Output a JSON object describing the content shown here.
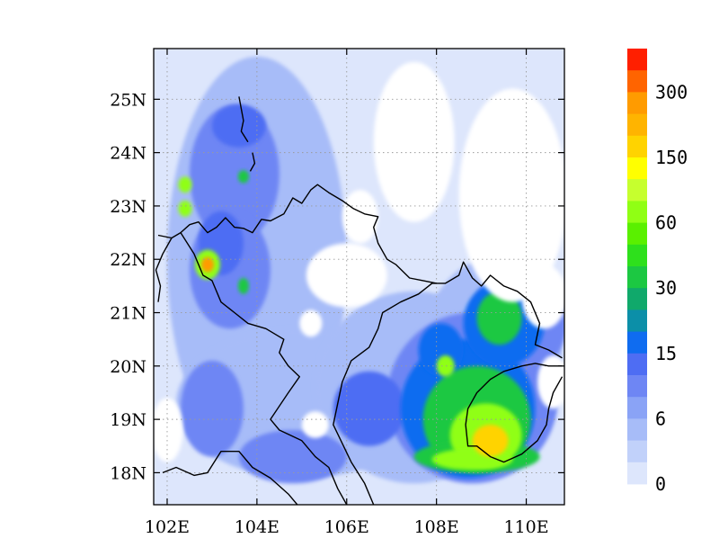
{
  "map": {
    "region": {
      "lon_range": [
        101.7,
        110.85
      ],
      "lat_range": [
        17.4,
        25.95
      ]
    },
    "lon_ticks": [
      {
        "value": 102,
        "label": "102E"
      },
      {
        "value": 104,
        "label": "104E"
      },
      {
        "value": 106,
        "label": "106E"
      },
      {
        "value": 108,
        "label": "108E"
      },
      {
        "value": 110,
        "label": "110E"
      }
    ],
    "lat_ticks": [
      {
        "value": 18,
        "label": "18N"
      },
      {
        "value": 19,
        "label": "19N"
      },
      {
        "value": 20,
        "label": "20N"
      },
      {
        "value": 21,
        "label": "21N"
      },
      {
        "value": 22,
        "label": "22N"
      },
      {
        "value": 23,
        "label": "23N"
      },
      {
        "value": 24,
        "label": "24N"
      },
      {
        "value": 25,
        "label": "25N"
      }
    ],
    "grid": "dotted",
    "field_blobs": [
      {
        "lon": 104.0,
        "lat": 22.0,
        "rx": 2.0,
        "ry": 3.8,
        "level": 1
      },
      {
        "lon": 105.0,
        "lat": 19.3,
        "rx": 2.8,
        "ry": 1.4,
        "level": 1
      },
      {
        "lon": 107.5,
        "lat": 19.6,
        "rx": 2.2,
        "ry": 1.8,
        "level": 1
      },
      {
        "lon": 109.2,
        "lat": 20.0,
        "rx": 1.6,
        "ry": 2.0,
        "level": 1
      },
      {
        "lon": 103.5,
        "lat": 23.6,
        "rx": 1.0,
        "ry": 1.3,
        "level": 2
      },
      {
        "lon": 103.4,
        "lat": 21.8,
        "rx": 0.9,
        "ry": 1.1,
        "level": 2
      },
      {
        "lon": 103.0,
        "lat": 19.2,
        "rx": 0.7,
        "ry": 0.9,
        "level": 2
      },
      {
        "lon": 104.8,
        "lat": 18.3,
        "rx": 1.2,
        "ry": 0.5,
        "level": 2
      },
      {
        "lon": 108.8,
        "lat": 19.4,
        "rx": 1.9,
        "ry": 1.6,
        "level": 2
      },
      {
        "lon": 109.8,
        "lat": 20.8,
        "rx": 1.1,
        "ry": 1.0,
        "level": 2
      },
      {
        "lon": 103.6,
        "lat": 24.5,
        "rx": 0.6,
        "ry": 0.4,
        "level": 3
      },
      {
        "lon": 103.2,
        "lat": 22.3,
        "rx": 0.5,
        "ry": 0.6,
        "level": 3
      },
      {
        "lon": 106.5,
        "lat": 19.2,
        "rx": 0.8,
        "ry": 0.7,
        "level": 3
      },
      {
        "lon": 108.7,
        "lat": 19.2,
        "rx": 1.5,
        "ry": 1.3,
        "level": 4
      },
      {
        "lon": 109.5,
        "lat": 20.8,
        "rx": 0.9,
        "ry": 0.8,
        "level": 4
      },
      {
        "lon": 108.1,
        "lat": 20.3,
        "rx": 0.5,
        "ry": 0.5,
        "level": 4
      },
      {
        "lon": 108.9,
        "lat": 19.0,
        "rx": 1.2,
        "ry": 1.0,
        "level": 5
      },
      {
        "lon": 108.9,
        "lat": 18.3,
        "rx": 1.4,
        "ry": 0.3,
        "level": 5
      },
      {
        "lon": 109.4,
        "lat": 20.9,
        "rx": 0.5,
        "ry": 0.5,
        "level": 5
      },
      {
        "lon": 109.1,
        "lat": 18.7,
        "rx": 0.8,
        "ry": 0.6,
        "level": 6
      },
      {
        "lon": 108.8,
        "lat": 18.25,
        "rx": 0.9,
        "ry": 0.2,
        "level": 6
      },
      {
        "lon": 108.2,
        "lat": 20.0,
        "rx": 0.2,
        "ry": 0.2,
        "level": 6
      },
      {
        "lon": 109.2,
        "lat": 18.6,
        "rx": 0.4,
        "ry": 0.3,
        "level": 7
      },
      {
        "lon": 102.9,
        "lat": 21.9,
        "rx": 0.28,
        "ry": 0.28,
        "level": 6
      },
      {
        "lon": 102.9,
        "lat": 21.9,
        "rx": 0.14,
        "ry": 0.14,
        "level": 8
      },
      {
        "lon": 102.4,
        "lat": 23.4,
        "rx": 0.15,
        "ry": 0.15,
        "level": 6
      },
      {
        "lon": 102.4,
        "lat": 22.95,
        "rx": 0.15,
        "ry": 0.15,
        "level": 6
      },
      {
        "lon": 103.7,
        "lat": 23.55,
        "rx": 0.12,
        "ry": 0.12,
        "level": 5
      },
      {
        "lon": 103.7,
        "lat": 21.5,
        "rx": 0.12,
        "ry": 0.15,
        "level": 5
      }
    ],
    "blank_patches": [
      {
        "lon": 107.5,
        "lat": 24.2,
        "rx": 0.9,
        "ry": 1.5
      },
      {
        "lon": 109.7,
        "lat": 23.2,
        "rx": 1.2,
        "ry": 2.0
      },
      {
        "lon": 106.3,
        "lat": 22.8,
        "rx": 0.4,
        "ry": 0.5
      },
      {
        "lon": 106.0,
        "lat": 21.7,
        "rx": 0.9,
        "ry": 0.6
      },
      {
        "lon": 110.4,
        "lat": 21.3,
        "rx": 0.5,
        "ry": 0.6
      },
      {
        "lon": 110.6,
        "lat": 19.7,
        "rx": 0.35,
        "ry": 0.5
      },
      {
        "lon": 102.0,
        "lat": 18.8,
        "rx": 0.35,
        "ry": 0.6
      },
      {
        "lon": 105.3,
        "lat": 18.9,
        "rx": 0.3,
        "ry": 0.25
      },
      {
        "lon": 105.2,
        "lat": 20.8,
        "rx": 0.25,
        "ry": 0.25
      }
    ],
    "borders": [
      [
        [
          101.8,
          22.45
        ],
        [
          102.1,
          22.4
        ],
        [
          102.3,
          22.5
        ],
        [
          102.5,
          22.65
        ],
        [
          102.7,
          22.7
        ],
        [
          102.9,
          22.5
        ],
        [
          103.1,
          22.6
        ],
        [
          103.3,
          22.78
        ],
        [
          103.5,
          22.6
        ],
        [
          103.7,
          22.58
        ],
        [
          103.9,
          22.5
        ],
        [
          104.1,
          22.75
        ],
        [
          104.3,
          22.72
        ],
        [
          104.6,
          22.85
        ],
        [
          104.8,
          23.15
        ],
        [
          105.0,
          23.05
        ],
        [
          105.2,
          23.3
        ],
        [
          105.35,
          23.4
        ],
        [
          105.6,
          23.25
        ],
        [
          105.9,
          23.1
        ],
        [
          106.15,
          22.95
        ],
        [
          106.4,
          22.85
        ],
        [
          106.7,
          22.8
        ],
        [
          106.6,
          22.6
        ],
        [
          106.7,
          22.3
        ],
        [
          106.9,
          22.0
        ],
        [
          107.1,
          21.9
        ],
        [
          107.4,
          21.65
        ],
        [
          107.7,
          21.6
        ],
        [
          108.0,
          21.55
        ]
      ],
      [
        [
          101.8,
          21.2
        ],
        [
          101.85,
          21.5
        ],
        [
          101.75,
          21.8
        ],
        [
          101.9,
          22.1
        ],
        [
          102.1,
          22.4
        ]
      ],
      [
        [
          102.3,
          22.5
        ],
        [
          102.6,
          22.1
        ],
        [
          102.8,
          21.7
        ],
        [
          103.0,
          21.6
        ],
        [
          103.2,
          21.2
        ],
        [
          103.5,
          21.0
        ],
        [
          103.8,
          20.8
        ],
        [
          104.2,
          20.7
        ],
        [
          104.6,
          20.5
        ],
        [
          104.5,
          20.25
        ],
        [
          104.7,
          20.0
        ],
        [
          104.95,
          19.8
        ],
        [
          104.7,
          19.5
        ],
        [
          104.3,
          19.0
        ],
        [
          104.5,
          18.8
        ],
        [
          105.0,
          18.6
        ],
        [
          105.3,
          18.3
        ],
        [
          105.6,
          18.1
        ],
        [
          105.8,
          17.7
        ],
        [
          106.0,
          17.4
        ]
      ],
      [
        [
          101.9,
          18.0
        ],
        [
          102.2,
          18.1
        ],
        [
          102.6,
          17.95
        ],
        [
          102.9,
          18.0
        ],
        [
          103.2,
          18.4
        ],
        [
          103.6,
          18.4
        ],
        [
          103.9,
          18.1
        ],
        [
          104.3,
          17.9
        ],
        [
          104.7,
          17.6
        ],
        [
          104.9,
          17.4
        ]
      ]
    ],
    "coastlines": [
      [
        [
          106.6,
          17.4
        ],
        [
          106.4,
          17.8
        ],
        [
          106.1,
          18.2
        ],
        [
          105.9,
          18.55
        ],
        [
          105.7,
          18.9
        ],
        [
          105.8,
          19.3
        ],
        [
          105.9,
          19.7
        ],
        [
          106.1,
          20.1
        ],
        [
          106.5,
          20.35
        ],
        [
          106.7,
          20.7
        ],
        [
          106.8,
          21.0
        ],
        [
          107.2,
          21.2
        ],
        [
          107.6,
          21.35
        ],
        [
          107.9,
          21.55
        ],
        [
          108.2,
          21.55
        ],
        [
          108.5,
          21.7
        ],
        [
          108.6,
          21.95
        ],
        [
          108.8,
          21.65
        ],
        [
          109.0,
          21.5
        ],
        [
          109.2,
          21.7
        ],
        [
          109.5,
          21.5
        ],
        [
          109.8,
          21.4
        ],
        [
          110.1,
          21.2
        ],
        [
          110.3,
          20.8
        ],
        [
          110.2,
          20.4
        ],
        [
          110.5,
          20.3
        ],
        [
          110.8,
          20.15
        ]
      ],
      [
        [
          110.8,
          19.8
        ],
        [
          110.6,
          19.5
        ],
        [
          110.5,
          19.2
        ],
        [
          110.45,
          18.9
        ],
        [
          110.25,
          18.6
        ],
        [
          109.9,
          18.35
        ],
        [
          109.5,
          18.2
        ],
        [
          109.2,
          18.3
        ],
        [
          108.9,
          18.5
        ],
        [
          108.7,
          18.5
        ],
        [
          108.65,
          18.9
        ],
        [
          108.7,
          19.2
        ],
        [
          108.9,
          19.5
        ],
        [
          109.2,
          19.75
        ],
        [
          109.5,
          19.9
        ],
        [
          109.9,
          20.0
        ],
        [
          110.2,
          20.05
        ],
        [
          110.5,
          20.0
        ],
        [
          110.8,
          20.0
        ]
      ],
      [
        [
          103.6,
          25.05
        ],
        [
          103.7,
          24.6
        ],
        [
          103.65,
          24.4
        ],
        [
          103.8,
          24.2
        ]
      ],
      [
        [
          103.9,
          24.0
        ],
        [
          103.95,
          23.8
        ],
        [
          103.85,
          23.65
        ]
      ]
    ]
  },
  "colorbar": {
    "levels": [
      {
        "color": "#ff1f00",
        "label": ""
      },
      {
        "color": "#ff6400",
        "label": "300"
      },
      {
        "color": "#ff9b00",
        "label": ""
      },
      {
        "color": "#ffb400",
        "label": ""
      },
      {
        "color": "#ffd300",
        "label": "150"
      },
      {
        "color": "#ffff00",
        "label": ""
      },
      {
        "color": "#c6ff2e",
        "label": ""
      },
      {
        "color": "#90ff14",
        "label": "60"
      },
      {
        "color": "#5af000",
        "label": ""
      },
      {
        "color": "#2ee01c",
        "label": ""
      },
      {
        "color": "#1cc842",
        "label": "30"
      },
      {
        "color": "#10a96b",
        "label": ""
      },
      {
        "color": "#0c8fa8",
        "label": ""
      },
      {
        "color": "#0f6cf0",
        "label": "15"
      },
      {
        "color": "#4e6df3",
        "label": ""
      },
      {
        "color": "#6e86f4",
        "label": ""
      },
      {
        "color": "#8aa3f6",
        "label": "6"
      },
      {
        "color": "#a7bcf8",
        "label": ""
      },
      {
        "color": "#c1d1fa",
        "label": ""
      },
      {
        "color": "#dde6fc",
        "label": "0"
      }
    ]
  },
  "field_colors": [
    "#dde6fc",
    "#a7bcf8",
    "#6e86f4",
    "#4e6df3",
    "#0f6cf0",
    "#1cc842",
    "#90ff14",
    "#ffd300",
    "#ff9b00"
  ]
}
